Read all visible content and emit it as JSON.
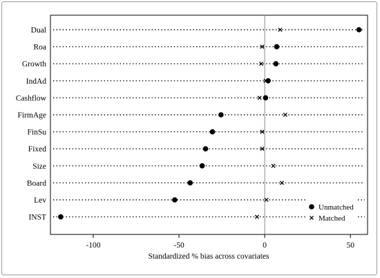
{
  "chart_data": {
    "type": "scatter",
    "xlabel": "Standardized % bias across covariates",
    "xlim": [
      -125,
      60
    ],
    "xticks": [
      -100,
      -50,
      0,
      50
    ],
    "reference_line": 0,
    "grid": "dotted horizontal lines per covariate",
    "legend_position": "bottom-right",
    "categories": [
      "Dual",
      "Roa",
      "Growth",
      "IndAd",
      "Cashflow",
      "FirmAge",
      "FinSu",
      "Fixed",
      "Size",
      "Board",
      "Lev",
      "INST"
    ],
    "series": [
      {
        "name": "Unmatched",
        "marker": "circle",
        "values": [
          55,
          7,
          6.5,
          2,
          0.5,
          -25.5,
          -30.5,
          -34.5,
          -36.5,
          -43.5,
          -52.5,
          -119
        ]
      },
      {
        "name": "Matched",
        "marker": "x",
        "values": [
          9,
          -1.5,
          -2,
          0.5,
          -3,
          12,
          -1.5,
          -1.5,
          5,
          10,
          1,
          -4.5
        ]
      }
    ]
  }
}
